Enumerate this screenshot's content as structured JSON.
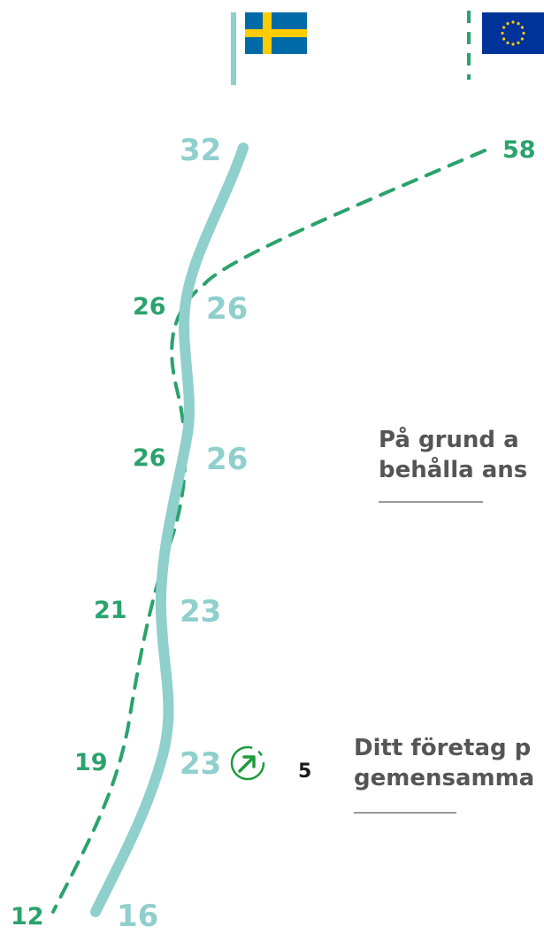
{
  "flags": {
    "left": {
      "country": "Sweden",
      "icon": "flag-sweden-icon",
      "colors": {
        "blue": "#006aa7",
        "yellow": "#fecc00"
      }
    },
    "right": {
      "country": "EU",
      "icon": "flag-eu-icon",
      "colors": {
        "blue": "#003399",
        "yellow": "#ffcc00"
      }
    }
  },
  "colors": {
    "sweden_line": "#8fcfcc",
    "eu_line": "#2aa36c",
    "text_grey": "#555555"
  },
  "sweden_values": [
    "32",
    "26",
    "26",
    "23",
    "23",
    "16"
  ],
  "eu_values": [
    "58",
    "26",
    "26",
    "21",
    "19",
    "12"
  ],
  "change_indicator": {
    "icon": "arrow-up-right-icon",
    "value": "5"
  },
  "callouts": [
    {
      "line1": "På grund a",
      "line2": "behålla ans"
    },
    {
      "line1": "Ditt företag p",
      "line2": "gemensamma"
    }
  ]
}
